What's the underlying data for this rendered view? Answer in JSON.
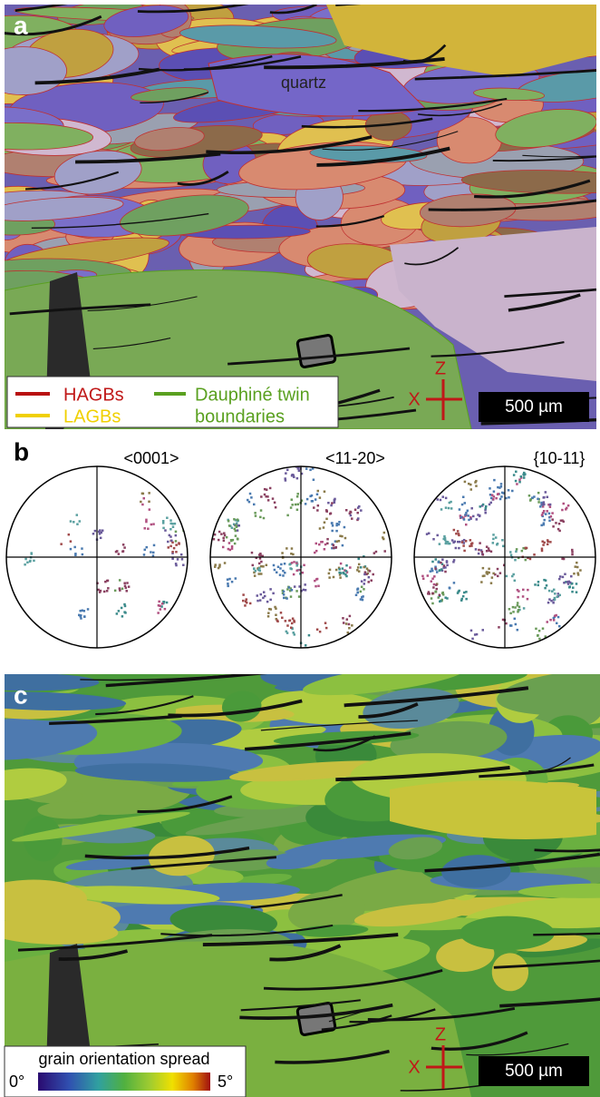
{
  "panels": {
    "a": {
      "label": "a",
      "annotation": "quartz",
      "legend": {
        "hagb": "HAGBs",
        "lagb": "LAGBs",
        "twin": [
          "Dauphiné twin",
          "boundaries"
        ]
      },
      "axes": {
        "z": "Z",
        "x": "X"
      },
      "scale_bar": "500 µm"
    },
    "b": {
      "label": "b",
      "pole_figures": [
        "<0001>",
        "<11-20>",
        "{10-11}"
      ]
    },
    "c": {
      "label": "c",
      "axes": {
        "z": "Z",
        "x": "X"
      },
      "scale_bar": "500 µm",
      "colorbar": {
        "title": "grain orientation spread",
        "min": "0°",
        "max": "5°"
      }
    }
  }
}
